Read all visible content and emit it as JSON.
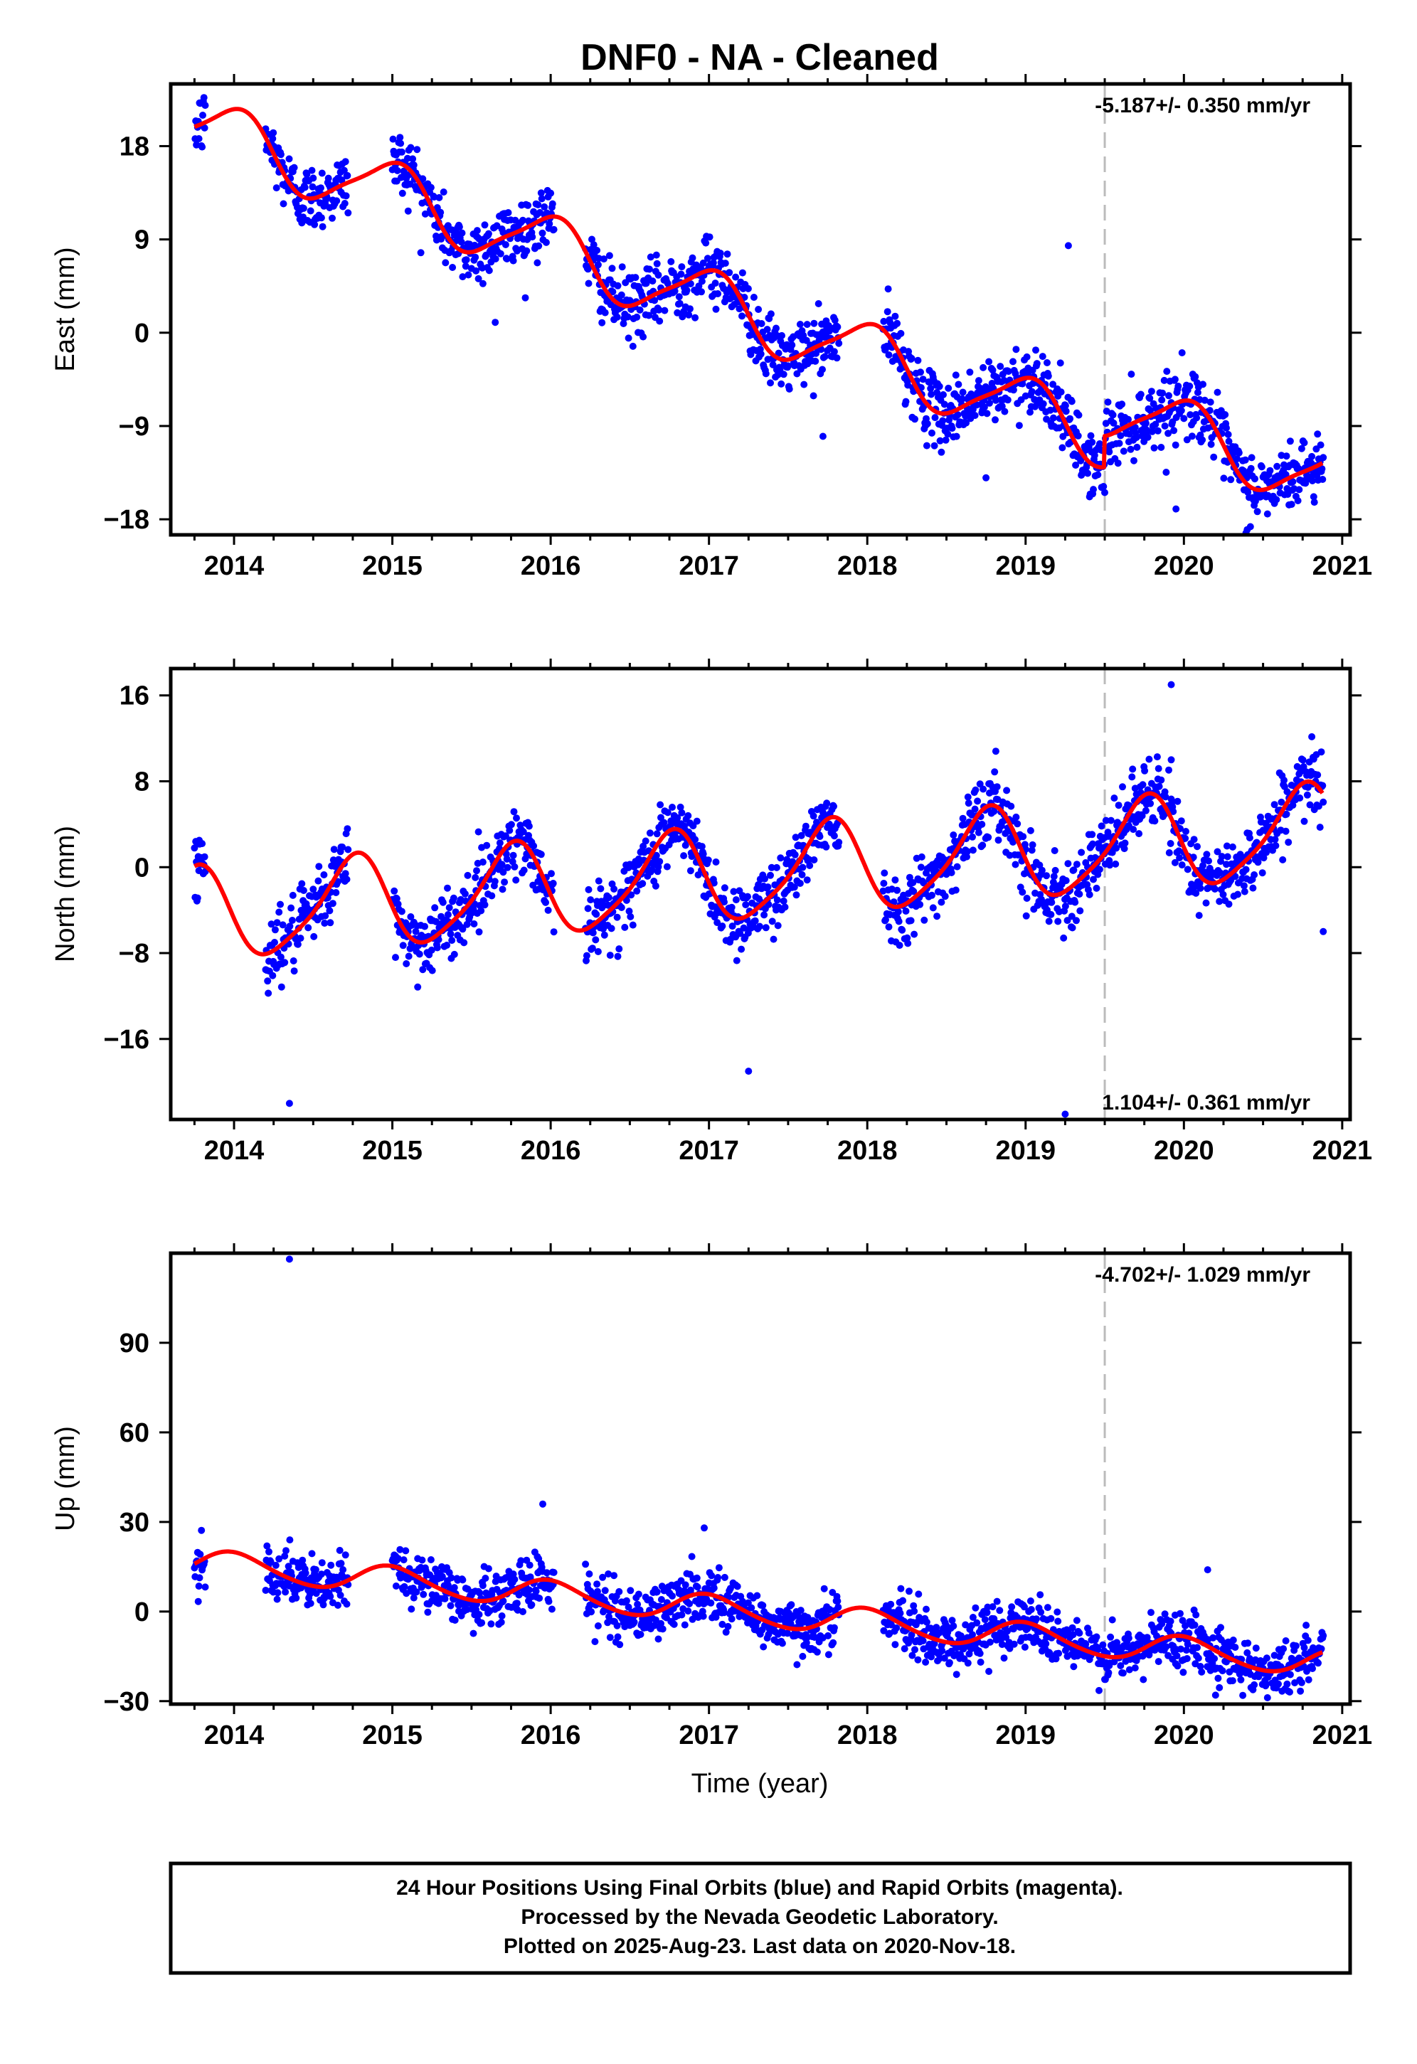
{
  "title": "DNF0  - NA - Cleaned",
  "x_label": "Time (year)",
  "colors": {
    "points": "#0000ff",
    "model": "#ff0000",
    "break_line": "#bbbbbb",
    "frame": "#000000"
  },
  "chart_data": [
    {
      "type": "scatter",
      "name": "east",
      "ylabel": "East (mm)",
      "xlim": [
        2013.6,
        2021.05
      ],
      "ylim": [
        -19.5,
        24
      ],
      "yticks": [
        -18,
        -9,
        0,
        9,
        18
      ],
      "ytick_labels": [
        "−18",
        "−9",
        "0",
        "9",
        "18"
      ],
      "xticks": [
        2014,
        2015,
        2016,
        2017,
        2018,
        2019,
        2020,
        2021
      ],
      "xtick_labels": [
        "2014",
        "2015",
        "2016",
        "2017",
        "2018",
        "2019",
        "2020",
        "2021"
      ],
      "rate_label": "-5.187+/- 0.350 mm/yr",
      "rate_position": "top-right",
      "break_epoch": 2019.5,
      "offset_at_break": 3.0,
      "model": {
        "value_at_2017": 3.0,
        "trend_per_year": -5.187,
        "annual_amp": 3.0,
        "annual_phase": 0.75,
        "semiannual_amp": 0.6,
        "semiannual_phase": 0.5
      },
      "data_segments": [
        [
          2013.75,
          2013.82
        ],
        [
          2014.2,
          2014.72
        ],
        [
          2015.0,
          2016.02
        ],
        [
          2016.22,
          2017.82
        ],
        [
          2018.1,
          2020.88
        ]
      ],
      "noise_sd": 1.6,
      "outliers": [
        [
          2019.27,
          8.4
        ],
        [
          2015.65,
          1.0
        ],
        [
          2017.72,
          -10.0
        ],
        [
          2018.75,
          -14.0
        ],
        [
          2019.95,
          -17.0
        ],
        [
          2020.4,
          -19.0
        ]
      ]
    },
    {
      "type": "scatter",
      "name": "north",
      "ylabel": "North (mm)",
      "xlim": [
        2013.6,
        2021.05
      ],
      "ylim": [
        -23.5,
        18.5
      ],
      "yticks": [
        -16,
        -8,
        0,
        8,
        16
      ],
      "ytick_labels": [
        "−16",
        "−8",
        "0",
        "8",
        "16"
      ],
      "xticks": [
        2014,
        2015,
        2016,
        2017,
        2018,
        2019,
        2020,
        2021
      ],
      "xtick_labels": [
        "2014",
        "2015",
        "2016",
        "2017",
        "2018",
        "2019",
        "2020",
        "2021"
      ],
      "rate_label": "1.104+/- 0.361 mm/yr",
      "rate_position": "bottom-right",
      "break_epoch": 2019.5,
      "offset_at_break": 0,
      "model": {
        "value_at_2017": -1.0,
        "trend_per_year": 1.104,
        "annual_amp": 4.2,
        "annual_phase": 0.5,
        "semiannual_amp": 0.8,
        "semiannual_phase": 0.2
      },
      "data_segments": [
        [
          2013.75,
          2013.82
        ],
        [
          2014.2,
          2014.72
        ],
        [
          2015.0,
          2016.02
        ],
        [
          2016.22,
          2017.82
        ],
        [
          2018.1,
          2020.88
        ]
      ],
      "noise_sd": 1.6,
      "outliers": [
        [
          2014.35,
          -22.0
        ],
        [
          2017.25,
          -19.0
        ],
        [
          2019.25,
          -23.0
        ],
        [
          2019.92,
          17.0
        ],
        [
          2019.92,
          10.0
        ],
        [
          2013.78,
          2.5
        ],
        [
          2020.88,
          -6.0
        ]
      ]
    },
    {
      "type": "scatter",
      "name": "up",
      "ylabel": "Up (mm)",
      "xlim": [
        2013.6,
        2021.05
      ],
      "ylim": [
        -31,
        120
      ],
      "yticks": [
        -30,
        0,
        30,
        60,
        90
      ],
      "ytick_labels": [
        "−30",
        "0",
        "30",
        "60",
        "90"
      ],
      "xticks": [
        2014,
        2015,
        2016,
        2017,
        2018,
        2019,
        2020,
        2021
      ],
      "xtick_labels": [
        "2014",
        "2015",
        "2016",
        "2017",
        "2018",
        "2019",
        "2020",
        "2021"
      ],
      "rate_label": "-4.702+/- 1.029 mm/yr",
      "rate_position": "top-right",
      "break_epoch": 2019.5,
      "offset_at_break": 0,
      "model": {
        "value_at_2017": 1.0,
        "trend_per_year": -4.702,
        "annual_amp": 4.5,
        "annual_phase": 0.75,
        "semiannual_amp": 0.5,
        "semiannual_phase": 0.3
      },
      "data_segments": [
        [
          2013.75,
          2013.82
        ],
        [
          2014.2,
          2014.72
        ],
        [
          2015.0,
          2016.02
        ],
        [
          2016.22,
          2017.82
        ],
        [
          2018.1,
          2020.88
        ]
      ],
      "noise_sd": 4.5,
      "outliers": [
        [
          2014.35,
          118.0
        ],
        [
          2015.95,
          36.0
        ],
        [
          2016.97,
          28.0
        ],
        [
          2020.15,
          14.0
        ],
        [
          2020.2,
          -28.0
        ]
      ]
    }
  ],
  "footer": {
    "line1": "24 Hour Positions Using Final Orbits (blue) and Rapid Orbits (magenta).",
    "line2": "Processed by the Nevada Geodetic Laboratory.",
    "line3": "Plotted on 2025-Aug-23. Last data on 2020-Nov-18."
  }
}
